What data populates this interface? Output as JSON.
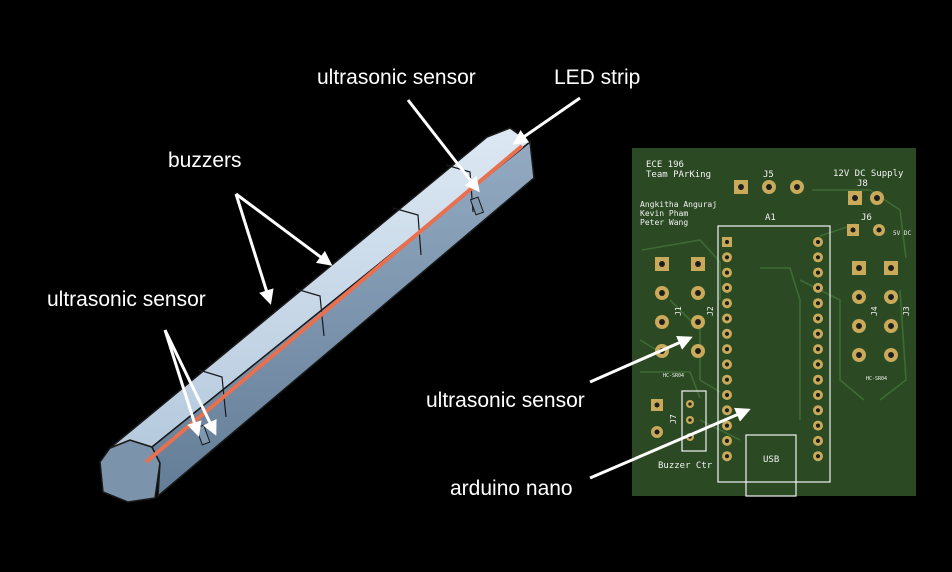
{
  "colors": {
    "background": "#000000",
    "pcb_green": "#2b4a23",
    "trace_green": "#3e6a34",
    "pad_gold": "#c8aa5a",
    "led_strip": "#e8704f",
    "housing_light": "#c3d6e8",
    "housing_dark": "#6f87a0"
  },
  "labels": {
    "ultrasonic_sensor_top": "ultrasonic sensor",
    "led_strip": "LED strip",
    "buzzers": "buzzers",
    "ultrasonic_sensor_left": "ultrasonic sensor",
    "ultrasonic_sensor_pcb": "ultrasonic sensor",
    "arduino_nano": "arduino nano"
  },
  "pcb": {
    "title_line1": "ECE 196",
    "title_line2": "Team PArKing",
    "authors": [
      "Angkitha Anguraj",
      "Kevin Pham",
      "Peter Wang"
    ],
    "power_label": "12V DC Supply",
    "j8": "J8",
    "j5": "J5",
    "a1": "A1",
    "j6": "J6",
    "vdc5": "5V DC",
    "j1": "J1",
    "j2": "J2",
    "j3": "J3",
    "j4": "J4",
    "hc_left": "HC-SR04",
    "hc_right": "HC-SR04",
    "j7": "J7",
    "usb": "USB",
    "buzzer_ctr": "Buzzer Ctr"
  }
}
